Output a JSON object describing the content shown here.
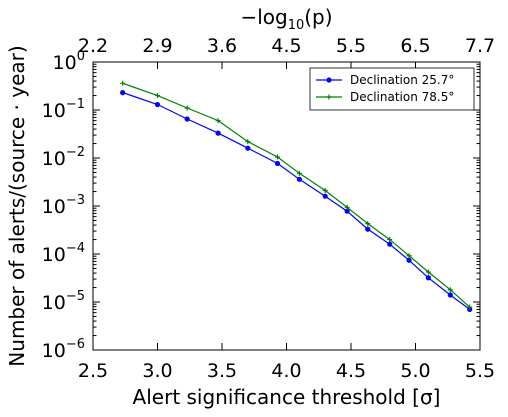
{
  "chart_data": {
    "type": "line",
    "xlabel": "Alert significance threshold [σ]",
    "ylabel": "Number of alerts/(source · year)",
    "top_xlabel": "−log10(p)",
    "x_ticks": [
      "2.5",
      "3.0",
      "3.5",
      "4.0",
      "4.5",
      "5.0",
      "5.5"
    ],
    "x_tick_values": [
      2.5,
      3.0,
      3.5,
      4.0,
      4.5,
      5.0,
      5.5
    ],
    "top_x_ticks": [
      "2.2",
      "2.9",
      "3.6",
      "4.5",
      "5.5",
      "6.5",
      "7.7"
    ],
    "y_tick_exponents": [
      -6,
      -5,
      -4,
      -3,
      -2,
      -1,
      0
    ],
    "y_scale": "log",
    "xlim": [
      2.5,
      5.5
    ],
    "ylim": [
      1e-06,
      1
    ],
    "grid": false,
    "legend_position": "top-right",
    "x": [
      2.73,
      3.0,
      3.23,
      3.47,
      3.7,
      3.93,
      4.1,
      4.3,
      4.47,
      4.63,
      4.8,
      4.95,
      5.1,
      5.27,
      5.42
    ],
    "series": [
      {
        "name": "Declination 25.7°",
        "color": "#0000ff",
        "marker": "circle",
        "values": [
          0.23,
          0.13,
          0.065,
          0.033,
          0.016,
          0.0077,
          0.0036,
          0.0016,
          0.00078,
          0.00033,
          0.00016,
          7.4e-05,
          3.2e-05,
          1.4e-05,
          7e-06
        ]
      },
      {
        "name": "Declination 78.5°",
        "color": "#008000",
        "marker": "plus",
        "values": [
          0.36,
          0.2,
          0.11,
          0.06,
          0.022,
          0.0105,
          0.0048,
          0.0021,
          0.00094,
          0.00043,
          0.0002,
          9.2e-05,
          4.2e-05,
          1.8e-05,
          7.8e-06
        ]
      }
    ]
  }
}
